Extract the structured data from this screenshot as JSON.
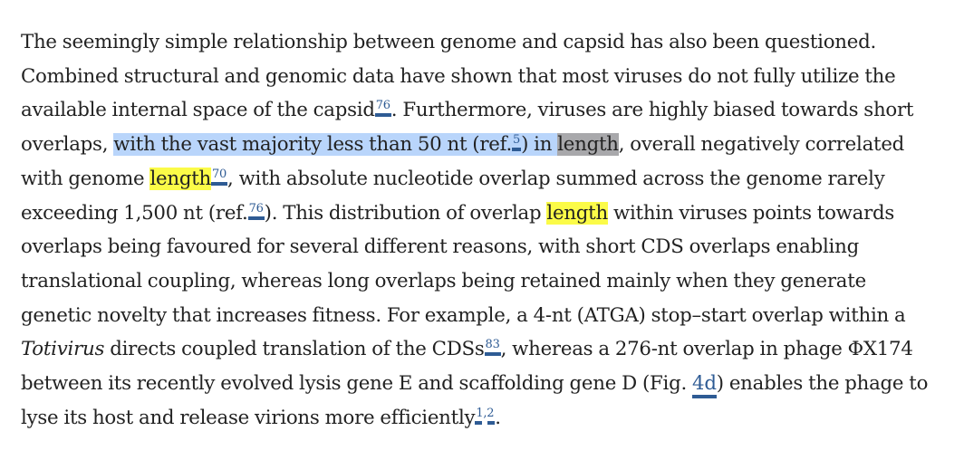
{
  "paragraph": {
    "l1": "The seemingly simple relationship between genome and capsid has also been questioned.",
    "l2": "Combined structural and genomic data have shown that most viruses do not fully utilize the",
    "l3a": "available internal space of the capsid",
    "l3_ref": "76",
    "l3b": ". Furthermore, viruses are highly biased towards short",
    "l4a": "overlaps, ",
    "l4_sel1": "with the vast majority less than 50 nt (ref.",
    "l4_ref": "5",
    "l4_sel2": ") in ",
    "l4_hl": "length",
    "l4b": ", overall negatively correlated",
    "l5a": "with genome ",
    "l5_hl": "length",
    "l5_ref": "70",
    "l5b": ", with absolute nucleotide overlap summed across the genome rarely",
    "l6a": "exceeding 1,500 nt (ref.",
    "l6_ref": "76",
    "l6b": "). This distribution of overlap ",
    "l6_hl": "length",
    "l6c": " within viruses points towards",
    "l7": "overlaps being favoured for several different reasons, with short CDS overlaps enabling",
    "l8": "translational coupling, whereas long overlaps being retained mainly when they generate",
    "l9": "genetic novelty that increases fitness. For example, a 4-nt (ATGA) stop–start overlap within a",
    "l10_it": "Totivirus",
    "l10a": " directs coupled translation of the CDSs",
    "l10_ref": "83",
    "l10b": ", whereas a 276-nt overlap in phage ΦX174",
    "l11a": "between its recently evolved lysis gene E and scaffolding gene D (Fig. ",
    "l11_fig": "4d",
    "l11b": ") enables the phage to",
    "l12a": "lyse its host and release virions more efficiently",
    "l12_ref": "1,2",
    "l12b": "."
  },
  "colors": {
    "text": "#222222",
    "link": "#2e5b94",
    "selection": "#b9d5fb",
    "search_highlight": "#fbfb48",
    "active_highlight": "#a8a8ab"
  }
}
